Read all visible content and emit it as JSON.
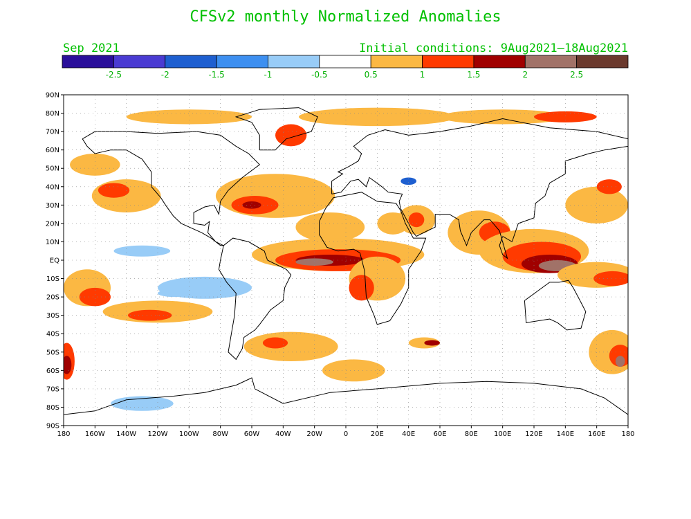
{
  "title": "CFSv2 monthly Normalized Anomalies",
  "valid_month": "Sep 2021",
  "initial_conditions": "Initial conditions: 9Aug2021—18Aug2021",
  "colorbar": {
    "colors": [
      "#2a0f9a",
      "#4a3bd2",
      "#1e5fd0",
      "#3d8ff0",
      "#98ccf7",
      "#ffffff",
      "#fbb843",
      "#ff3a00",
      "#a00000",
      "#a17268",
      "#6b3a2e"
    ],
    "labels": [
      "-2.5",
      "-2",
      "-1.5",
      "-1",
      "-0.5",
      "0.5",
      "1",
      "1.5",
      "2",
      "2.5"
    ]
  },
  "map": {
    "lat_labels": [
      "90N",
      "80N",
      "70N",
      "60N",
      "50N",
      "40N",
      "30N",
      "20N",
      "10N",
      "EQ",
      "10S",
      "20S",
      "30S",
      "40S",
      "50S",
      "60S",
      "70S",
      "80S",
      "90S"
    ],
    "lon_labels": [
      "180",
      "160W",
      "140W",
      "120W",
      "100W",
      "80W",
      "60W",
      "40W",
      "20W",
      "0",
      "20E",
      "40E",
      "60E",
      "80E",
      "100E",
      "120E",
      "140E",
      "160E",
      "180"
    ],
    "anomaly_blobs": [
      {
        "lon": -140,
        "lat": 35,
        "rx": 22,
        "ry": 9,
        "level": 6
      },
      {
        "lon": -148,
        "lat": 38,
        "rx": 10,
        "ry": 4,
        "level": 7
      },
      {
        "lon": -160,
        "lat": 52,
        "rx": 16,
        "ry": 6,
        "level": 6
      },
      {
        "lon": -165,
        "lat": -15,
        "rx": 15,
        "ry": 10,
        "level": 6
      },
      {
        "lon": -160,
        "lat": -20,
        "rx": 10,
        "ry": 5,
        "level": 7
      },
      {
        "lon": -120,
        "lat": -28,
        "rx": 35,
        "ry": 6,
        "level": 6
      },
      {
        "lon": -125,
        "lat": -30,
        "rx": 14,
        "ry": 3,
        "level": 7
      },
      {
        "lon": -178,
        "lat": -55,
        "rx": 5,
        "ry": 10,
        "level": 7
      },
      {
        "lon": -178,
        "lat": -57,
        "rx": 3,
        "ry": 5,
        "level": 8
      },
      {
        "lon": -45,
        "lat": 35,
        "rx": 38,
        "ry": 12,
        "level": 6
      },
      {
        "lon": -58,
        "lat": 30,
        "rx": 15,
        "ry": 5,
        "level": 7
      },
      {
        "lon": -60,
        "lat": 30,
        "rx": 6,
        "ry": 2,
        "level": 8
      },
      {
        "lon": -10,
        "lat": 18,
        "rx": 22,
        "ry": 8,
        "level": 6
      },
      {
        "lon": -5,
        "lat": 3,
        "rx": 55,
        "ry": 9,
        "level": 6
      },
      {
        "lon": -5,
        "lat": 0,
        "rx": 40,
        "ry": 6,
        "level": 7
      },
      {
        "lon": -10,
        "lat": 0,
        "rx": 22,
        "ry": 3,
        "level": 8
      },
      {
        "lon": -20,
        "lat": -1,
        "rx": 12,
        "ry": 2,
        "level": 9
      },
      {
        "lon": 20,
        "lat": -10,
        "rx": 18,
        "ry": 12,
        "level": 6
      },
      {
        "lon": 10,
        "lat": -15,
        "rx": 8,
        "ry": 7,
        "level": 7
      },
      {
        "lon": -35,
        "lat": -47,
        "rx": 30,
        "ry": 8,
        "level": 6
      },
      {
        "lon": -45,
        "lat": -45,
        "rx": 8,
        "ry": 3,
        "level": 7
      },
      {
        "lon": 5,
        "lat": -60,
        "rx": 20,
        "ry": 6,
        "level": 6
      },
      {
        "lon": 50,
        "lat": -45,
        "rx": 10,
        "ry": 3,
        "level": 6
      },
      {
        "lon": 55,
        "lat": -45,
        "rx": 5,
        "ry": 1.5,
        "level": 8
      },
      {
        "lon": 45,
        "lat": 22,
        "rx": 12,
        "ry": 8,
        "level": 6
      },
      {
        "lon": 45,
        "lat": 22,
        "rx": 5,
        "ry": 4,
        "level": 7
      },
      {
        "lon": 85,
        "lat": 15,
        "rx": 20,
        "ry": 12,
        "level": 6
      },
      {
        "lon": 95,
        "lat": 15,
        "rx": 10,
        "ry": 6,
        "level": 7
      },
      {
        "lon": 120,
        "lat": 5,
        "rx": 35,
        "ry": 12,
        "level": 6
      },
      {
        "lon": 125,
        "lat": 2,
        "rx": 25,
        "ry": 8,
        "level": 7
      },
      {
        "lon": 130,
        "lat": -2,
        "rx": 18,
        "ry": 5,
        "level": 8
      },
      {
        "lon": 135,
        "lat": -3,
        "rx": 12,
        "ry": 3,
        "level": 9
      },
      {
        "lon": 160,
        "lat": -8,
        "rx": 25,
        "ry": 7,
        "level": 6
      },
      {
        "lon": 170,
        "lat": -10,
        "rx": 12,
        "ry": 4,
        "level": 7
      },
      {
        "lon": 160,
        "lat": 30,
        "rx": 20,
        "ry": 10,
        "level": 6
      },
      {
        "lon": 168,
        "lat": 40,
        "rx": 8,
        "ry": 4,
        "level": 7
      },
      {
        "lon": 170,
        "lat": -50,
        "rx": 15,
        "ry": 12,
        "level": 6
      },
      {
        "lon": 175,
        "lat": -52,
        "rx": 7,
        "ry": 6,
        "level": 7
      },
      {
        "lon": 175,
        "lat": -55,
        "rx": 3,
        "ry": 3,
        "level": 9
      },
      {
        "lon": 20,
        "lat": 78,
        "rx": 50,
        "ry": 5,
        "level": 6
      },
      {
        "lon": 100,
        "lat": 78,
        "rx": 40,
        "ry": 4,
        "level": 6
      },
      {
        "lon": 140,
        "lat": 78,
        "rx": 20,
        "ry": 3,
        "level": 7
      },
      {
        "lon": -35,
        "lat": 68,
        "rx": 10,
        "ry": 6,
        "level": 7
      },
      {
        "lon": -100,
        "lat": 78,
        "rx": 40,
        "ry": 4,
        "level": 6
      },
      {
        "lon": 30,
        "lat": 20,
        "rx": 10,
        "ry": 6,
        "level": 6
      },
      {
        "lon": 40,
        "lat": 43,
        "rx": 5,
        "ry": 2,
        "level": -3
      },
      {
        "lon": -90,
        "lat": -15,
        "rx": 30,
        "ry": 6,
        "level": -1
      },
      {
        "lon": -130,
        "lat": -78,
        "rx": 20,
        "ry": 4,
        "level": -1
      },
      {
        "lon": -130,
        "lat": 5,
        "rx": 18,
        "ry": 3,
        "level": -1
      },
      {
        "lon": -110,
        "lat": -18,
        "rx": 10,
        "ry": 2,
        "level": -1
      }
    ]
  }
}
